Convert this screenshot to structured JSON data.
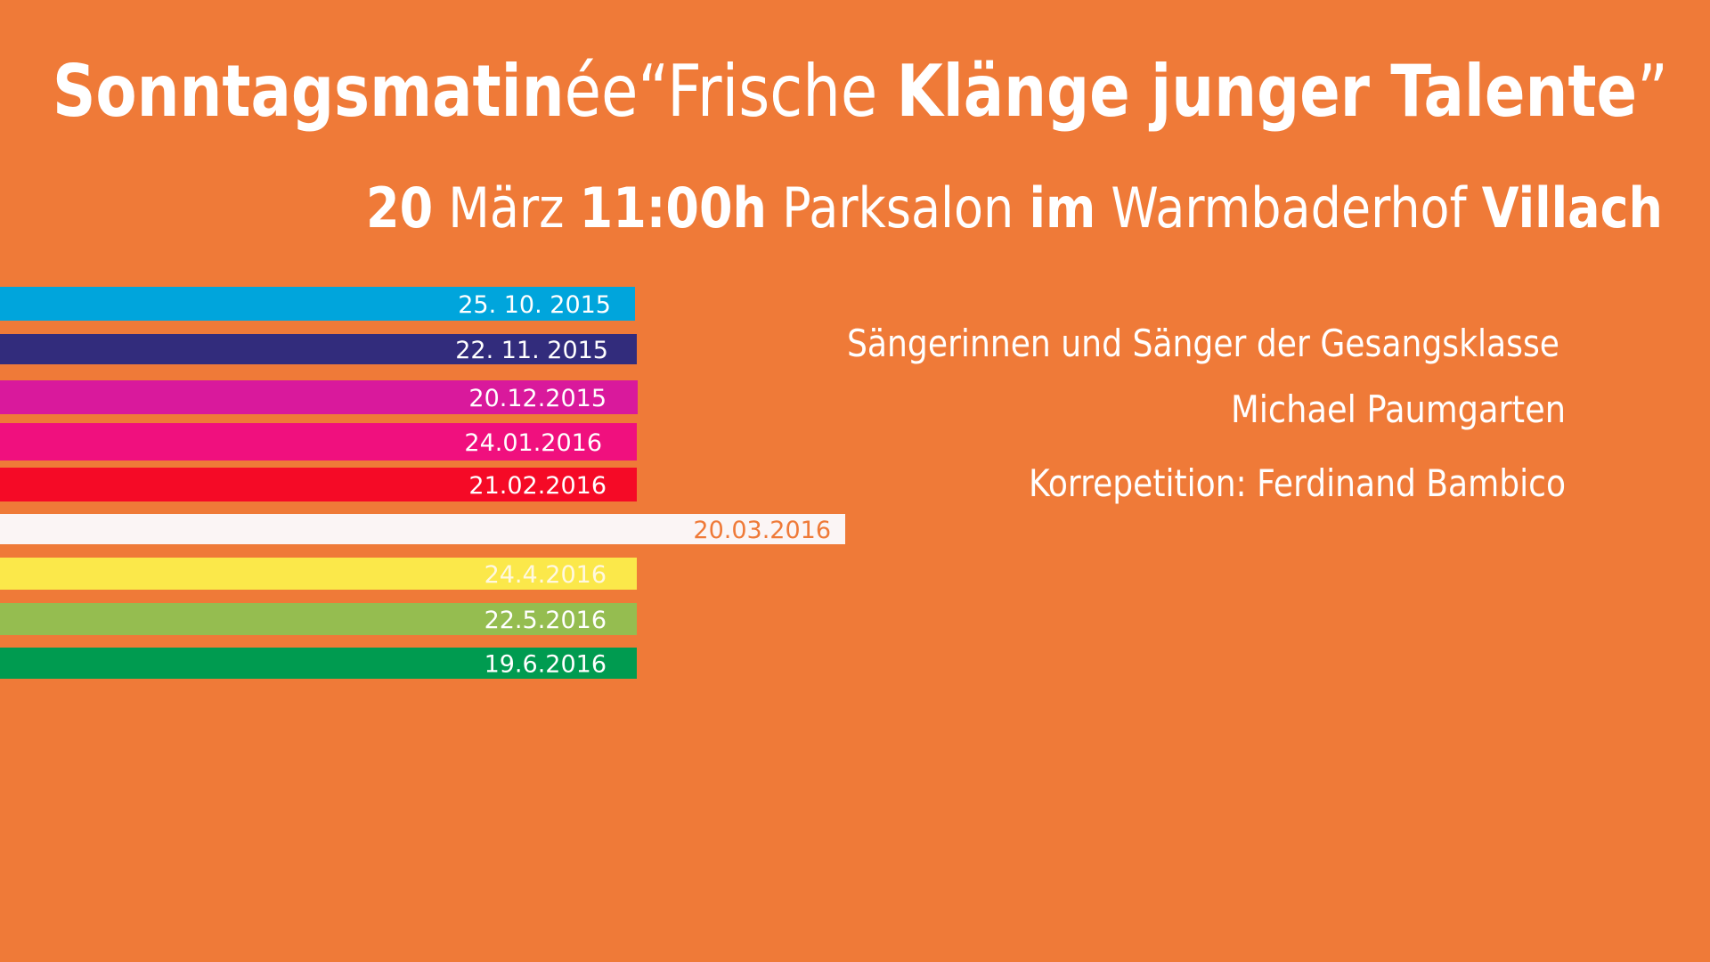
{
  "header": {
    "title": [
      "Sonntagsmatin",
      "ée",
      "“Frische ",
      "Klänge junger Talente",
      "”"
    ],
    "subtitle": [
      "20",
      " März ",
      "11:00h",
      " Parksalon ",
      "im",
      " Warmbaderhof ",
      "Villach"
    ]
  },
  "dates": [
    {
      "label": "25. 10. 2015",
      "color": "#00a5dc",
      "text_color": "#ffffff"
    },
    {
      "label": "22. 11. 2015",
      "color": "#322c7c",
      "text_color": "#ffffff"
    },
    {
      "label": "20.12.2015",
      "color": "#d9199c",
      "text_color": "#ffffff"
    },
    {
      "label": "24.01.2016",
      "color": "#f0107e",
      "text_color": "#ffffff"
    },
    {
      "label": "21.02.2016",
      "color": "#f50a26",
      "text_color": "#ffffff"
    },
    {
      "label": "20.03.2016",
      "color": "#fbf5f5",
      "text_color": "#ef7a38"
    },
    {
      "label": "24.4.2016",
      "color": "#fbe84a",
      "text_color": "#fff8e0"
    },
    {
      "label": "22.5.2016",
      "color": "#95bd50",
      "text_color": "#ffffff"
    },
    {
      "label": "19.6.2016",
      "color": "#009b50",
      "text_color": "#ffffff"
    }
  ],
  "info": [
    "Sängerinnen und Sänger der Gesangsklasse",
    "Michael Paumgarten",
    "Korrepetition: Ferdinand Bambico"
  ]
}
